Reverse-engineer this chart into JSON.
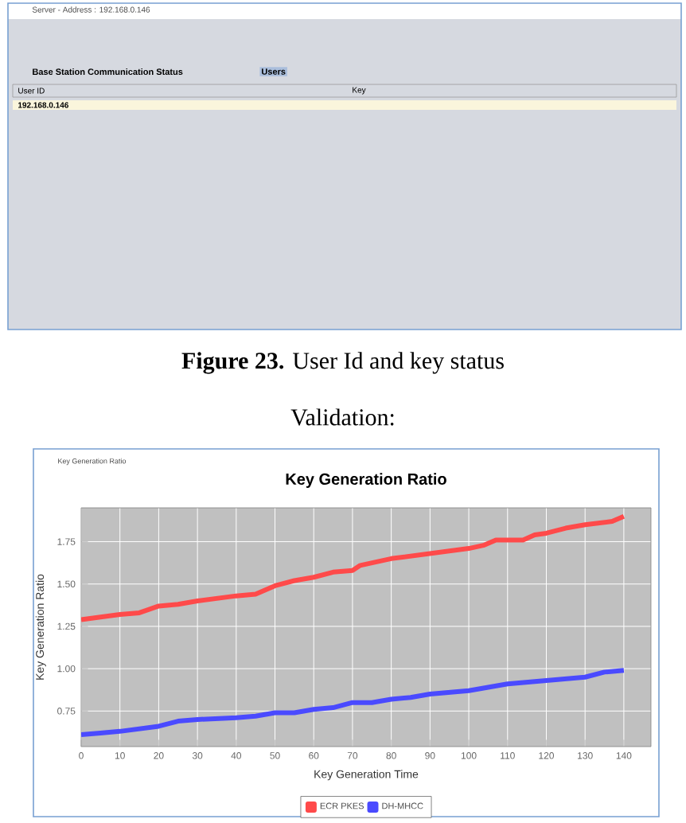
{
  "chart_data": {
    "type": "line",
    "title": "Key Generation Ratio",
    "xlabel": "Key Generation Time",
    "ylabel": "Key Generation Ratio",
    "annotations": [
      "Server - Address : 192.168.0.146",
      "Base Station Communication Status",
      "Users",
      "User ID",
      "Key",
      "192.168.0.146",
      "**Figure 23.** User Id and key status",
      "Validation:",
      "Key Generation Ratio"
    ],
    "series": [
      {
        "name": "ECR PKES",
        "color": "#ff4a4a",
        "x": [
          0,
          10,
          15,
          20,
          25,
          30,
          40,
          45,
          50,
          55,
          60,
          65,
          70,
          72,
          80,
          90,
          100,
          104,
          107,
          114,
          117,
          120,
          125,
          130,
          137,
          140
        ],
        "values": [
          1.29,
          1.32,
          1.33,
          1.37,
          1.38,
          1.4,
          1.43,
          1.44,
          1.49,
          1.52,
          1.54,
          1.57,
          1.58,
          1.61,
          1.65,
          1.68,
          1.71,
          1.73,
          1.76,
          1.76,
          1.79,
          1.8,
          1.83,
          1.85,
          1.87,
          1.9
        ]
      },
      {
        "name": "DH-MHCC",
        "color": "#4a4aff",
        "x": [
          0,
          5,
          10,
          20,
          25,
          30,
          40,
          45,
          50,
          55,
          60,
          65,
          70,
          75,
          80,
          85,
          90,
          100,
          105,
          110,
          120,
          130,
          135,
          140
        ],
        "values": [
          0.61,
          0.62,
          0.63,
          0.66,
          0.69,
          0.7,
          0.71,
          0.72,
          0.74,
          0.74,
          0.76,
          0.77,
          0.8,
          0.8,
          0.82,
          0.83,
          0.85,
          0.87,
          0.89,
          0.91,
          0.93,
          0.95,
          0.98,
          0.99
        ]
      }
    ],
    "xlim": [
      0,
      147
    ],
    "ylim": [
      0.54,
      1.95
    ],
    "xticks": [
      0,
      10,
      20,
      30,
      40,
      50,
      60,
      70,
      80,
      90,
      100,
      110,
      120,
      130,
      140
    ],
    "yticks": [
      0.75,
      {
        "value": 1.0,
        "label": "1.00"
      },
      1.25,
      {
        "value": 1.5,
        "label": "1.50"
      },
      1.75
    ],
    "grid": true,
    "legend": "bottom",
    "marker": "none",
    "line_style": "solid"
  }
}
